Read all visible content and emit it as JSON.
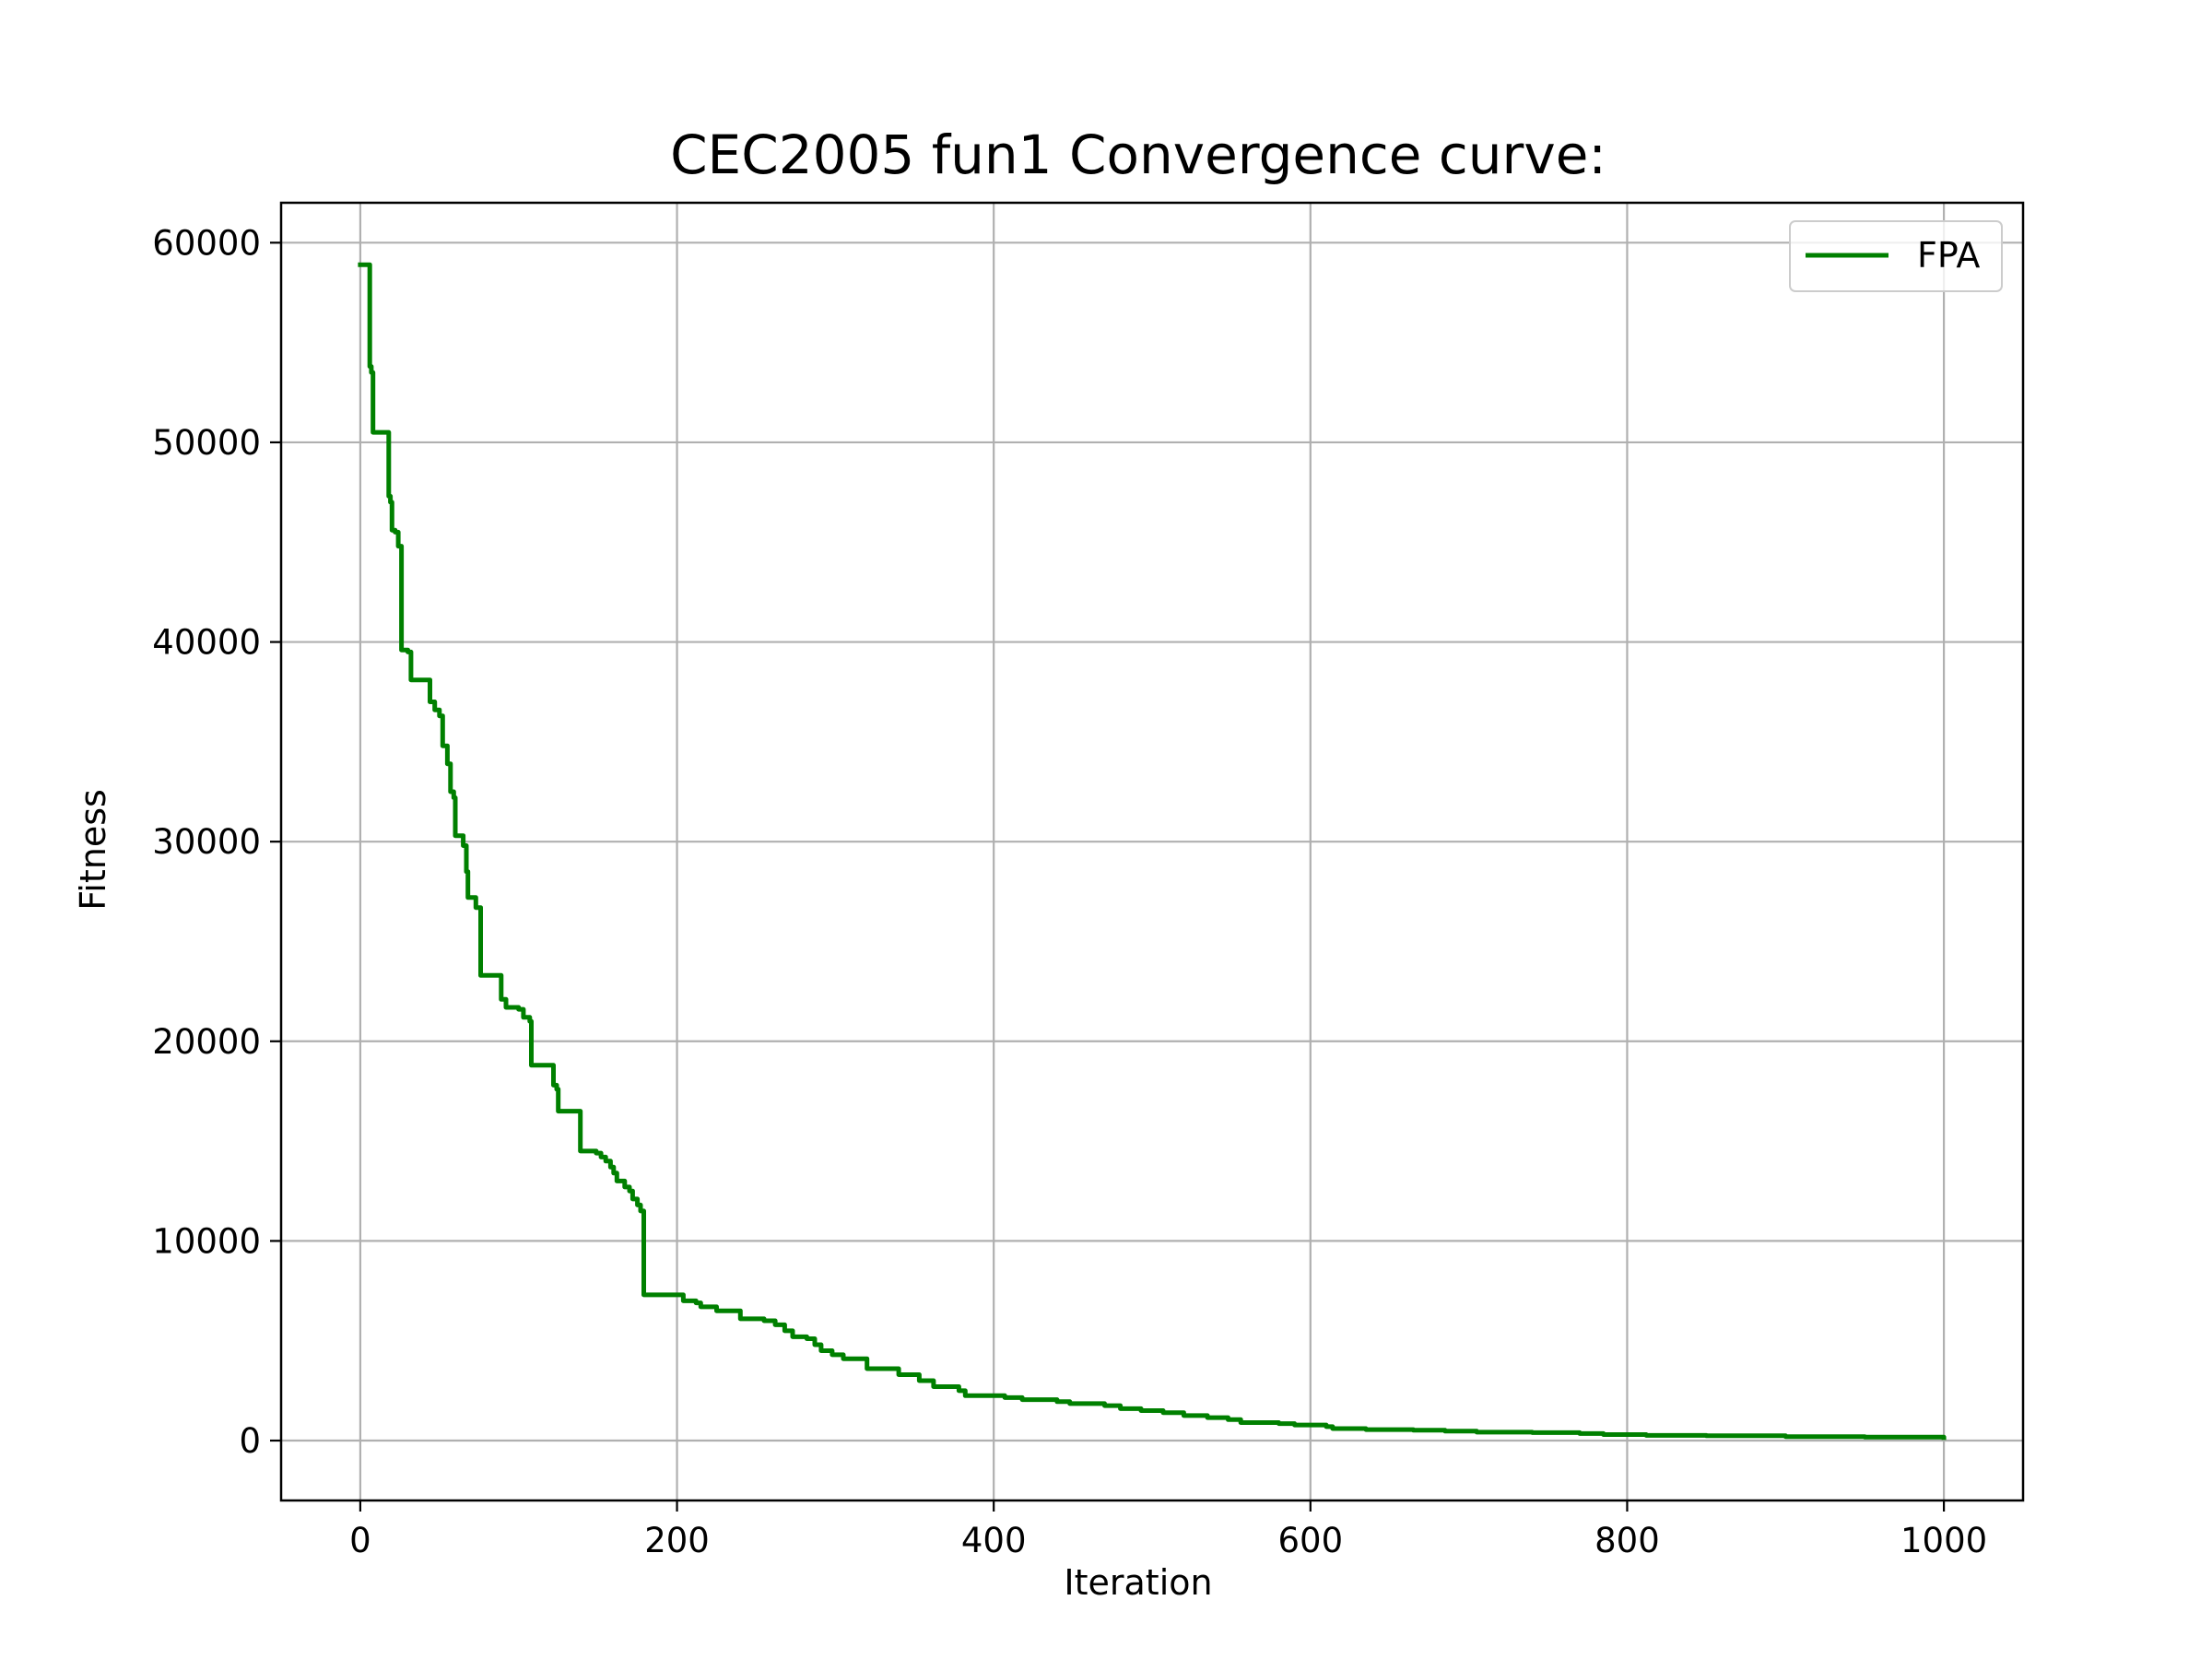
{
  "chart_data": {
    "type": "line",
    "title": "CEC2005 fun1 Convergence curve:",
    "xlabel": "Iteration",
    "ylabel": "Fitness",
    "xlim": [
      -50,
      1050
    ],
    "ylim": [
      -3000,
      62000
    ],
    "xticks": [
      0,
      200,
      400,
      600,
      800,
      1000
    ],
    "yticks": [
      0,
      10000,
      20000,
      30000,
      40000,
      50000,
      60000
    ],
    "grid": true,
    "legend_position": "top-right",
    "series": [
      {
        "name": "FPA",
        "color": "#008000",
        "step": "post",
        "points": [
          [
            0,
            58900
          ],
          [
            5,
            58900
          ],
          [
            6,
            53800
          ],
          [
            7,
            53500
          ],
          [
            8,
            50500
          ],
          [
            17,
            50500
          ],
          [
            18,
            47300
          ],
          [
            19,
            47000
          ],
          [
            20,
            45600
          ],
          [
            22,
            45500
          ],
          [
            24,
            44800
          ],
          [
            26,
            39600
          ],
          [
            30,
            39500
          ],
          [
            32,
            38100
          ],
          [
            44,
            37000
          ],
          [
            47,
            36600
          ],
          [
            50,
            36300
          ],
          [
            52,
            34800
          ],
          [
            55,
            33900
          ],
          [
            57,
            32500
          ],
          [
            59,
            32200
          ],
          [
            60,
            30300
          ],
          [
            65,
            29800
          ],
          [
            67,
            28500
          ],
          [
            68,
            27200
          ],
          [
            73,
            26700
          ],
          [
            76,
            23300
          ],
          [
            87,
            23300
          ],
          [
            89,
            22100
          ],
          [
            92,
            21700
          ],
          [
            100,
            21600
          ],
          [
            103,
            21200
          ],
          [
            107,
            21000
          ],
          [
            108,
            18800
          ],
          [
            119,
            18800
          ],
          [
            122,
            17800
          ],
          [
            124,
            17600
          ],
          [
            125,
            16500
          ],
          [
            138,
            16500
          ],
          [
            139,
            14500
          ],
          [
            149,
            14400
          ],
          [
            152,
            14200
          ],
          [
            155,
            14000
          ],
          [
            158,
            13700
          ],
          [
            160,
            13400
          ],
          [
            162,
            13000
          ],
          [
            167,
            12700
          ],
          [
            170,
            12500
          ],
          [
            172,
            12100
          ],
          [
            175,
            11800
          ],
          [
            177,
            11500
          ],
          [
            179,
            7300
          ],
          [
            200,
            7300
          ],
          [
            204,
            7000
          ],
          [
            212,
            6900
          ],
          [
            215,
            6700
          ],
          [
            225,
            6500
          ],
          [
            240,
            6100
          ],
          [
            255,
            6000
          ],
          [
            262,
            5800
          ],
          [
            268,
            5500
          ],
          [
            273,
            5200
          ],
          [
            282,
            5100
          ],
          [
            287,
            4800
          ],
          [
            291,
            4500
          ],
          [
            298,
            4300
          ],
          [
            305,
            4100
          ],
          [
            320,
            3600
          ],
          [
            340,
            3300
          ],
          [
            353,
            3000
          ],
          [
            362,
            2700
          ],
          [
            378,
            2500
          ],
          [
            382,
            2250
          ],
          [
            407,
            2150
          ],
          [
            418,
            2050
          ],
          [
            440,
            1950
          ],
          [
            448,
            1850
          ],
          [
            470,
            1750
          ],
          [
            480,
            1600
          ],
          [
            493,
            1500
          ],
          [
            507,
            1400
          ],
          [
            520,
            1250
          ],
          [
            535,
            1150
          ],
          [
            548,
            1050
          ],
          [
            556,
            900
          ],
          [
            580,
            850
          ],
          [
            590,
            780
          ],
          [
            610,
            700
          ],
          [
            614,
            600
          ],
          [
            635,
            550
          ],
          [
            665,
            520
          ],
          [
            685,
            470
          ],
          [
            705,
            420
          ],
          [
            740,
            400
          ],
          [
            770,
            350
          ],
          [
            785,
            300
          ],
          [
            812,
            260
          ],
          [
            850,
            240
          ],
          [
            900,
            200
          ],
          [
            950,
            170
          ],
          [
            1000,
            150
          ]
        ]
      }
    ]
  }
}
